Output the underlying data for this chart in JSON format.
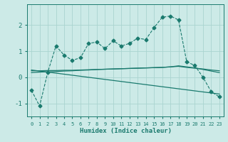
{
  "title": "",
  "xlabel": "Humidex (Indice chaleur)",
  "ylabel": "",
  "background_color": "#cceae7",
  "grid_color": "#aad4d0",
  "line_color": "#1a7a6e",
  "xlim": [
    -0.5,
    23.5
  ],
  "ylim": [
    -1.5,
    2.8
  ],
  "xticks": [
    0,
    1,
    2,
    3,
    4,
    5,
    6,
    7,
    8,
    9,
    10,
    11,
    12,
    13,
    14,
    15,
    16,
    17,
    18,
    19,
    20,
    21,
    22,
    23
  ],
  "yticks": [
    -1,
    0,
    1,
    2
  ],
  "series": {
    "line1": {
      "x": [
        0,
        1,
        2,
        3,
        4,
        5,
        6,
        7,
        8,
        9,
        10,
        11,
        12,
        13,
        14,
        15,
        16,
        17,
        18,
        19,
        20,
        21,
        22,
        23
      ],
      "y": [
        -0.5,
        -1.1,
        0.2,
        1.2,
        0.85,
        0.65,
        0.75,
        1.3,
        1.35,
        1.1,
        1.4,
        1.2,
        1.3,
        1.5,
        1.45,
        1.9,
        2.3,
        2.35,
        2.2,
        0.6,
        0.45,
        0.0,
        -0.55,
        -0.75
      ],
      "marker": "D",
      "markersize": 2.5,
      "linestyle": "--",
      "linewidth": 0.8
    },
    "line2": {
      "x": [
        0,
        1,
        2,
        3,
        4,
        5,
        6,
        7,
        8,
        9,
        10,
        11,
        12,
        13,
        14,
        15,
        16,
        17,
        18,
        19,
        20,
        21,
        22,
        23
      ],
      "y": [
        0.18,
        0.2,
        0.21,
        0.22,
        0.24,
        0.25,
        0.27,
        0.28,
        0.3,
        0.31,
        0.32,
        0.33,
        0.34,
        0.35,
        0.36,
        0.37,
        0.38,
        0.4,
        0.42,
        0.38,
        0.35,
        0.32,
        0.28,
        0.25
      ],
      "marker": null,
      "markersize": 0,
      "linestyle": "-",
      "linewidth": 0.9
    },
    "line3": {
      "x": [
        0,
        1,
        2,
        3,
        4,
        5,
        6,
        7,
        8,
        9,
        10,
        11,
        12,
        13,
        14,
        15,
        16,
        17,
        18,
        19,
        20,
        21,
        22,
        23
      ],
      "y": [
        0.25,
        0.25,
        0.26,
        0.26,
        0.27,
        0.27,
        0.28,
        0.29,
        0.3,
        0.31,
        0.32,
        0.33,
        0.34,
        0.35,
        0.36,
        0.37,
        0.38,
        0.4,
        0.44,
        0.4,
        0.36,
        0.3,
        0.24,
        0.18
      ],
      "marker": null,
      "markersize": 0,
      "linestyle": "-",
      "linewidth": 0.9
    },
    "line4": {
      "x": [
        0,
        1,
        2,
        3,
        4,
        5,
        6,
        7,
        8,
        9,
        10,
        11,
        12,
        13,
        14,
        15,
        16,
        17,
        18,
        19,
        20,
        21,
        22,
        23
      ],
      "y": [
        0.28,
        0.24,
        0.2,
        0.16,
        0.12,
        0.08,
        0.04,
        0.0,
        -0.04,
        -0.08,
        -0.12,
        -0.16,
        -0.2,
        -0.24,
        -0.28,
        -0.32,
        -0.36,
        -0.4,
        -0.44,
        -0.48,
        -0.52,
        -0.56,
        -0.6,
        -0.64
      ],
      "marker": null,
      "markersize": 0,
      "linestyle": "-",
      "linewidth": 0.9
    }
  }
}
